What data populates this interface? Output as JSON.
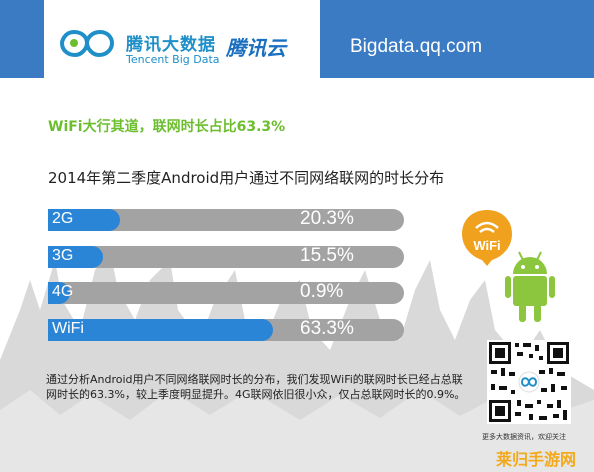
{
  "header": {
    "brand_cn": "腾讯大数据",
    "brand_en": "Tencent Big Data",
    "cloud_logo": "腾讯云",
    "site": "Bigdata.qq.com"
  },
  "headline": "WiFi大行其道，联网时长占比63.3%",
  "chart_data": {
    "type": "bar",
    "orientation": "horizontal",
    "title": "2014年第二季度Android用户通过不同网络联网的时长分布",
    "categories": [
      "2G",
      "3G",
      "4G",
      "WiFi"
    ],
    "values": [
      20.3,
      15.5,
      0.9,
      63.3
    ],
    "value_labels": [
      "20.3%",
      "15.5%",
      "0.9%",
      "63.3%"
    ],
    "xlim": [
      0,
      100
    ],
    "unit": "%",
    "colors": {
      "fill": "#2a85d6",
      "track": "#a3a3a3"
    }
  },
  "description": "通过分析Android用户不同网络联网时长的分布，我们发现WiFi的联网时长已经占总联网时长的63.3%，较上季度明显提升。4G联网依旧很小众，仅占总联网时长的0.9%。",
  "icons": {
    "wifi_badge_text": "WiFi",
    "android": "android-robot-icon"
  },
  "qr_caption": "更多大数据资讯，欢迎关注",
  "watermark": "莱归手游网",
  "colors": {
    "header_blue": "#3b7bc4",
    "accent_green": "#6cbe2f",
    "wifi_orange": "#f0a21f",
    "android_green": "#8cc63f"
  }
}
